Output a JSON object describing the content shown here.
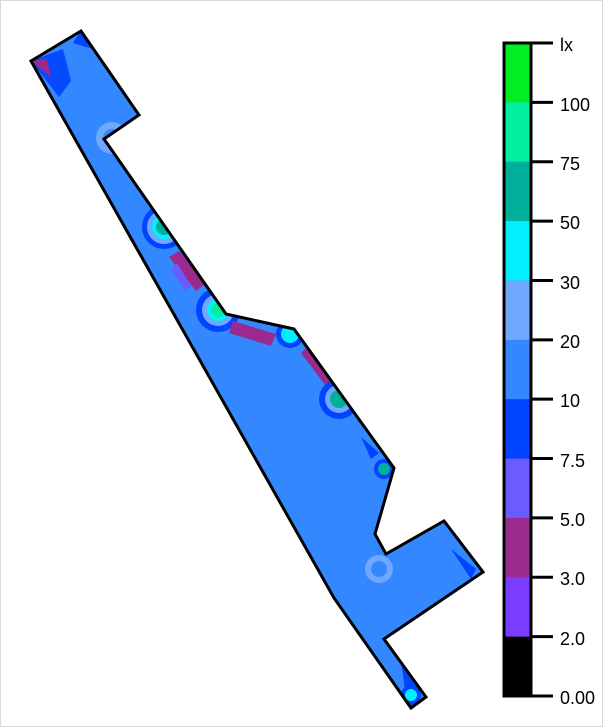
{
  "legend": {
    "unit": "lx",
    "tick_labels": [
      "100",
      "75",
      "50",
      "30",
      "20",
      "10",
      "7.5",
      "5.0",
      "3.0",
      "2.0",
      "0.00"
    ],
    "bands_top_to_bottom": [
      {
        "range": "> 100",
        "color": "#00ee22"
      },
      {
        "range": "75 - 100",
        "color": "#00f0a0"
      },
      {
        "range": "50 - 75",
        "color": "#00b09a"
      },
      {
        "range": "30 - 50",
        "color": "#00f0ff"
      },
      {
        "range": "20 - 30",
        "color": "#70a8ff"
      },
      {
        "range": "10 - 20",
        "color": "#3388ff"
      },
      {
        "range": "7.5 - 10",
        "color": "#0044ff"
      },
      {
        "range": "5.0 - 7.5",
        "color": "#6a5cff"
      },
      {
        "range": "3.0 - 5.0",
        "color": "#9b2a8e"
      },
      {
        "range": "2.0 - 3.0",
        "color": "#7a3cff"
      },
      {
        "range": "0.00 - 2.0",
        "color": "#000000"
      }
    ]
  },
  "floor_plan": {
    "dominant_level": "10 - 20",
    "fill_color": "#3388ff",
    "outline_color": "#000000"
  }
}
